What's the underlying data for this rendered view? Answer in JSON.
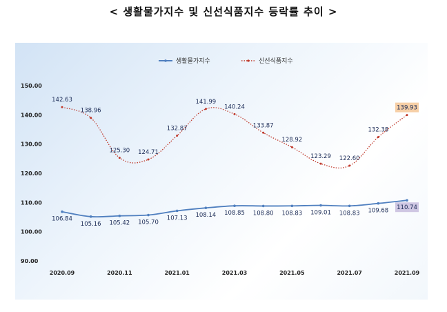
{
  "page": {
    "title": "< 생활물가지수 및 신선식품지수 등락률 추이 >"
  },
  "chart_data": {
    "type": "line",
    "title": "< 생활물가지수 및 신선식품지수 등락률 추이 >",
    "categories": [
      "2020.09",
      "2020.10",
      "2020.11",
      "2020.12",
      "2021.01",
      "2021.02",
      "2021.03",
      "2021.04",
      "2021.05",
      "2021.06",
      "2021.07",
      "2021.08",
      "2021.09"
    ],
    "x_tick_labels": [
      "2020.09",
      "2020.11",
      "2021.01",
      "2021.03",
      "2021.05",
      "2021.07",
      "2021.09"
    ],
    "y_tick_labels": [
      "90.00",
      "100.00",
      "110.00",
      "120.00",
      "130.00",
      "140.00",
      "150.00"
    ],
    "ylim": [
      90,
      150
    ],
    "legend_position": "top-center",
    "grid": false,
    "series": [
      {
        "name": "생활물가지수",
        "color": "#4f7fbf",
        "style": "solid",
        "values": [
          106.84,
          105.16,
          105.42,
          105.7,
          107.13,
          108.14,
          108.85,
          108.8,
          108.83,
          109.01,
          108.83,
          109.68,
          110.74
        ],
        "labels": [
          "106.84",
          "105.16",
          "105.42",
          "105.70",
          "107.13",
          "108.14",
          "108.85",
          "108.80",
          "108.83",
          "109.01",
          "108.83",
          "109.68",
          "110.74"
        ]
      },
      {
        "name": "신선식품지수",
        "color": "#c0392b",
        "style": "dotted",
        "values": [
          142.63,
          138.96,
          125.3,
          124.71,
          132.87,
          141.99,
          140.24,
          133.87,
          128.92,
          123.29,
          122.6,
          132.38,
          139.93
        ],
        "labels": [
          "142.63",
          "138.96",
          "125.30",
          "124.71",
          "132.87",
          "141.99",
          "140.24",
          "133.87",
          "128.92",
          "123.29",
          "122.60",
          "132.38",
          "139.93"
        ]
      }
    ],
    "highlight": [
      {
        "series": 0,
        "index": 12,
        "color": "#cfc7e3"
      },
      {
        "series": 1,
        "index": 12,
        "color": "#f6cfa6"
      }
    ]
  }
}
